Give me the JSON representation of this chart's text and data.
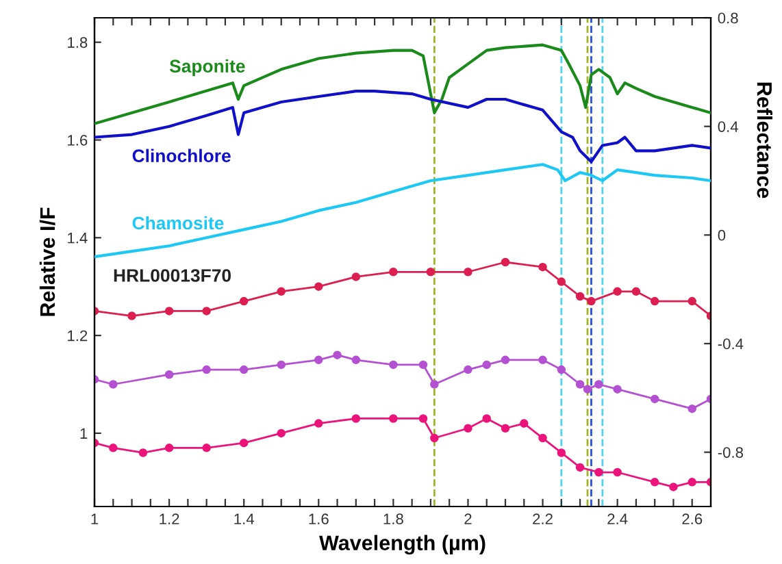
{
  "chart_data": {
    "type": "line",
    "xlabel": "Wavelength (µm)",
    "ylabel": "Relative I/F",
    "y2label": "Reflectance",
    "xlim": [
      1,
      2.65
    ],
    "ylim": [
      0.85,
      1.85
    ],
    "y2lim": [
      -1.0,
      0.8
    ],
    "xticks": [
      1,
      {
        "value": 1.05,
        "label": null
      },
      {
        "value": 1.1,
        "label": null
      },
      {
        "value": 1.15,
        "label": null
      },
      1.2,
      {
        "value": 1.25,
        "label": null
      },
      {
        "value": 1.3,
        "label": null
      },
      {
        "value": 1.35,
        "label": null
      },
      1.4,
      {
        "value": 1.45,
        "label": null
      },
      {
        "value": 1.5,
        "label": null
      },
      {
        "value": 1.55,
        "label": null
      },
      1.6,
      {
        "value": 1.65,
        "label": null
      },
      {
        "value": 1.7,
        "label": null
      },
      {
        "value": 1.75,
        "label": null
      },
      1.8,
      {
        "value": 1.85,
        "label": null
      },
      {
        "value": 1.9,
        "label": null
      },
      {
        "value": 1.95,
        "label": null
      },
      2,
      {
        "value": 2.05,
        "label": null
      },
      {
        "value": 2.1,
        "label": null
      },
      {
        "value": 2.15,
        "label": null
      },
      2.2,
      {
        "value": 2.25,
        "label": null
      },
      {
        "value": 2.3,
        "label": null
      },
      {
        "value": 2.35,
        "label": null
      },
      2.4,
      {
        "value": 2.45,
        "label": null
      },
      {
        "value": 2.5,
        "label": null
      },
      {
        "value": 2.55,
        "label": null
      },
      2.6
    ],
    "yticks": [
      1,
      1.2,
      1.4,
      1.6,
      1.8
    ],
    "y2ticks": [
      -0.8,
      -0.4,
      0,
      0.4,
      0.8
    ],
    "grid": false,
    "legend": false,
    "annotations": [
      "HRL00013F70"
    ],
    "ref_lines": [
      {
        "axis": "x",
        "value": 1.91,
        "label": null,
        "color": "#a0b428",
        "line_style": "dashed"
      },
      {
        "axis": "x",
        "value": 2.25,
        "label": null,
        "color": "#50d2f0",
        "line_style": "dashed"
      },
      {
        "axis": "x",
        "value": 2.32,
        "label": null,
        "color": "#a0b428",
        "line_style": "dashed"
      },
      {
        "axis": "x",
        "value": 2.33,
        "label": null,
        "color": "#2850dc",
        "line_style": "dashed"
      },
      {
        "axis": "x",
        "value": 2.36,
        "label": null,
        "color": "#50d2f0",
        "line_style": "dashed"
      }
    ],
    "series": [
      {
        "name": "Saponite",
        "color": "#1a8a1a",
        "axis": "y2",
        "marker": "none",
        "x": [
          1.0,
          1.2,
          1.37,
          1.385,
          1.4,
          1.5,
          1.6,
          1.7,
          1.8,
          1.85,
          1.88,
          1.91,
          1.93,
          1.95,
          2.0,
          2.05,
          2.1,
          2.2,
          2.25,
          2.27,
          2.3,
          2.315,
          2.33,
          2.35,
          2.38,
          2.4,
          2.42,
          2.45,
          2.5,
          2.55,
          2.6,
          2.65
        ],
        "values": [
          0.41,
          0.49,
          0.56,
          0.5,
          0.55,
          0.61,
          0.65,
          0.67,
          0.68,
          0.68,
          0.66,
          0.45,
          0.5,
          0.58,
          0.63,
          0.68,
          0.69,
          0.7,
          0.68,
          0.63,
          0.55,
          0.47,
          0.59,
          0.61,
          0.58,
          0.52,
          0.56,
          0.54,
          0.51,
          0.49,
          0.47,
          0.45
        ]
      },
      {
        "name": "Clinochlore",
        "color": "#1010c8",
        "axis": "y2",
        "marker": "none",
        "x": [
          1.0,
          1.1,
          1.2,
          1.3,
          1.37,
          1.385,
          1.4,
          1.5,
          1.6,
          1.7,
          1.75,
          1.85,
          1.9,
          2.0,
          2.05,
          2.1,
          2.2,
          2.25,
          2.28,
          2.3,
          2.33,
          2.36,
          2.4,
          2.42,
          2.45,
          2.5,
          2.6,
          2.65
        ],
        "values": [
          0.36,
          0.37,
          0.4,
          0.44,
          0.47,
          0.37,
          0.45,
          0.49,
          0.51,
          0.53,
          0.53,
          0.52,
          0.5,
          0.47,
          0.5,
          0.5,
          0.46,
          0.38,
          0.36,
          0.31,
          0.27,
          0.33,
          0.34,
          0.36,
          0.31,
          0.31,
          0.33,
          0.32
        ]
      },
      {
        "name": "Chamosite",
        "color": "#1ec8f5",
        "axis": "y2",
        "marker": "none",
        "x": [
          1.0,
          1.1,
          1.2,
          1.3,
          1.4,
          1.5,
          1.6,
          1.7,
          1.8,
          1.9,
          2.0,
          2.1,
          2.2,
          2.24,
          2.26,
          2.3,
          2.33,
          2.36,
          2.4,
          2.5,
          2.6,
          2.65
        ],
        "values": [
          -0.08,
          -0.06,
          -0.04,
          -0.01,
          0.02,
          0.05,
          0.09,
          0.12,
          0.16,
          0.2,
          0.22,
          0.24,
          0.26,
          0.24,
          0.2,
          0.23,
          0.22,
          0.2,
          0.24,
          0.22,
          0.21,
          0.2
        ]
      },
      {
        "color": "#dc1e50",
        "axis": "y",
        "marker": "circle",
        "x": [
          1.0,
          1.1,
          1.2,
          1.3,
          1.4,
          1.5,
          1.6,
          1.7,
          1.8,
          1.9,
          2.0,
          2.1,
          2.2,
          2.25,
          2.3,
          2.33,
          2.4,
          2.45,
          2.5,
          2.6,
          2.65
        ],
        "values": [
          1.25,
          1.24,
          1.25,
          1.25,
          1.27,
          1.29,
          1.3,
          1.32,
          1.33,
          1.33,
          1.33,
          1.35,
          1.34,
          1.31,
          1.28,
          1.27,
          1.29,
          1.29,
          1.27,
          1.27,
          1.24
        ]
      },
      {
        "color": "#b450d2",
        "axis": "y",
        "marker": "circle",
        "x": [
          1.0,
          1.05,
          1.2,
          1.3,
          1.4,
          1.5,
          1.6,
          1.65,
          1.7,
          1.8,
          1.88,
          1.91,
          2.0,
          2.05,
          2.1,
          2.2,
          2.25,
          2.3,
          2.32,
          2.35,
          2.4,
          2.5,
          2.6,
          2.65
        ],
        "values": [
          1.11,
          1.1,
          1.12,
          1.13,
          1.13,
          1.14,
          1.15,
          1.16,
          1.15,
          1.14,
          1.14,
          1.1,
          1.13,
          1.14,
          1.15,
          1.15,
          1.13,
          1.1,
          1.09,
          1.1,
          1.09,
          1.07,
          1.05,
          1.07
        ]
      },
      {
        "color": "#eb147a",
        "axis": "y",
        "marker": "circle",
        "x": [
          1.0,
          1.05,
          1.13,
          1.2,
          1.3,
          1.4,
          1.5,
          1.6,
          1.7,
          1.8,
          1.88,
          1.91,
          2.0,
          2.05,
          2.1,
          2.15,
          2.2,
          2.25,
          2.3,
          2.35,
          2.4,
          2.5,
          2.55,
          2.6,
          2.65
        ],
        "values": [
          0.98,
          0.97,
          0.96,
          0.97,
          0.97,
          0.98,
          1.0,
          1.02,
          1.03,
          1.03,
          1.03,
          0.99,
          1.01,
          1.03,
          1.01,
          1.02,
          0.99,
          0.96,
          0.93,
          0.92,
          0.92,
          0.9,
          0.89,
          0.9,
          0.9
        ]
      }
    ]
  }
}
